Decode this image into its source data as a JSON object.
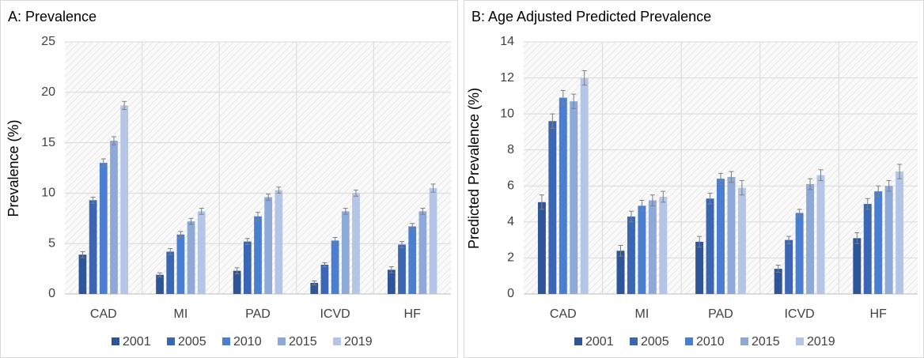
{
  "chart_data": [
    {
      "type": "bar",
      "title": "A: Prevalence",
      "ylabel": "Prevalence (%)",
      "categories": [
        "CAD",
        "MI",
        "PAD",
        "ICVD",
        "HF"
      ],
      "series": [
        {
          "name": "2001",
          "color": "#2e5597",
          "values": [
            3.9,
            1.9,
            2.3,
            1.1,
            2.4
          ],
          "errors": [
            0.3,
            0.2,
            0.3,
            0.2,
            0.3
          ]
        },
        {
          "name": "2005",
          "color": "#3b66b3",
          "values": [
            9.3,
            4.2,
            5.2,
            2.9,
            4.9
          ],
          "errors": [
            0.3,
            0.3,
            0.3,
            0.2,
            0.3
          ]
        },
        {
          "name": "2010",
          "color": "#4a7ed0",
          "values": [
            13.0,
            5.9,
            7.7,
            5.3,
            6.7
          ],
          "errors": [
            0.4,
            0.3,
            0.4,
            0.3,
            0.3
          ]
        },
        {
          "name": "2015",
          "color": "#8ea8d8",
          "values": [
            15.2,
            7.2,
            9.6,
            8.2,
            8.2
          ],
          "errors": [
            0.4,
            0.3,
            0.3,
            0.3,
            0.3
          ]
        },
        {
          "name": "2019",
          "color": "#b5c5e8",
          "values": [
            18.7,
            8.2,
            10.3,
            10.0,
            10.5
          ],
          "errors": [
            0.4,
            0.3,
            0.3,
            0.3,
            0.4
          ]
        }
      ],
      "ylim": [
        0,
        25
      ],
      "yticks": [
        0,
        5,
        10,
        15,
        20,
        25
      ],
      "grid": true
    },
    {
      "type": "bar",
      "title": "B: Age Adjusted Predicted Prevalence",
      "ylabel": "Predicted Prevalence (%)",
      "categories": [
        "CAD",
        "MI",
        "PAD",
        "ICVD",
        "HF"
      ],
      "series": [
        {
          "name": "2001",
          "color": "#2e5597",
          "values": [
            5.1,
            2.4,
            2.9,
            1.4,
            3.1
          ],
          "errors": [
            0.4,
            0.3,
            0.3,
            0.2,
            0.3
          ]
        },
        {
          "name": "2005",
          "color": "#3b66b3",
          "values": [
            9.6,
            4.3,
            5.3,
            3.0,
            5.0
          ],
          "errors": [
            0.4,
            0.3,
            0.3,
            0.2,
            0.3
          ]
        },
        {
          "name": "2010",
          "color": "#4a7ed0",
          "values": [
            10.9,
            4.9,
            6.4,
            4.5,
            5.7
          ],
          "errors": [
            0.4,
            0.3,
            0.3,
            0.2,
            0.3
          ]
        },
        {
          "name": "2015",
          "color": "#8ea8d8",
          "values": [
            10.7,
            5.2,
            6.5,
            6.1,
            6.0
          ],
          "errors": [
            0.4,
            0.3,
            0.3,
            0.3,
            0.3
          ]
        },
        {
          "name": "2019",
          "color": "#b5c5e8",
          "values": [
            12.0,
            5.4,
            5.9,
            6.6,
            6.8
          ],
          "errors": [
            0.4,
            0.3,
            0.4,
            0.3,
            0.4
          ]
        }
      ],
      "ylim": [
        0,
        14
      ],
      "yticks": [
        0,
        2,
        4,
        6,
        8,
        10,
        12,
        14
      ],
      "grid": true
    }
  ]
}
